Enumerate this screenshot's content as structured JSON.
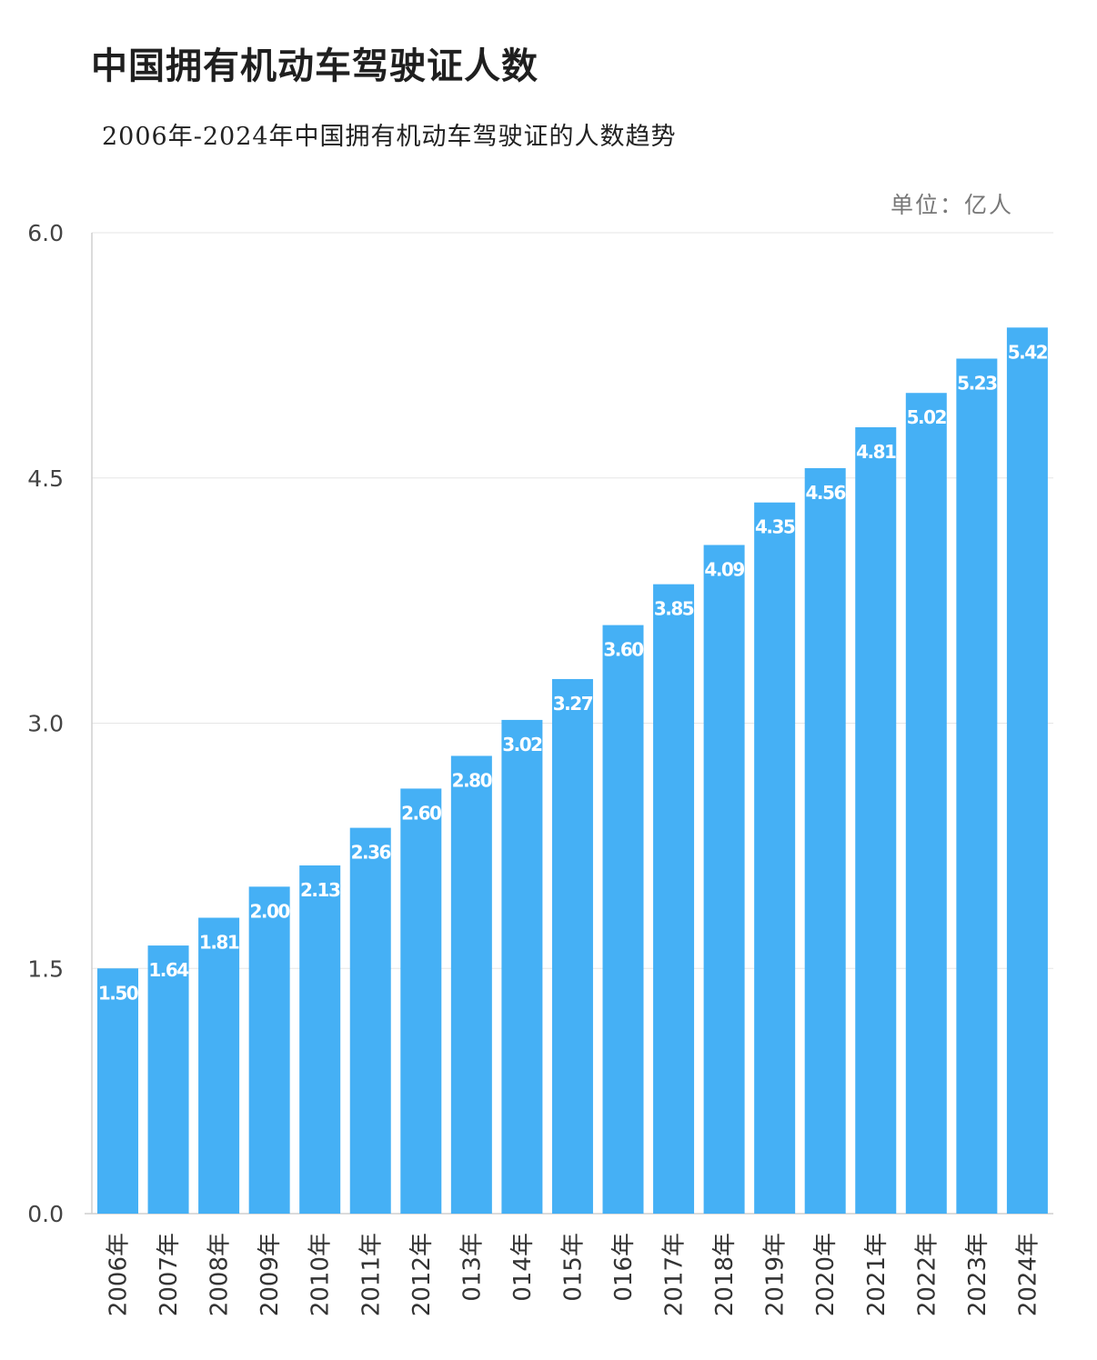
{
  "header": {
    "title": "中国拥有机动车驾驶证人数",
    "subtitle": "2006年-2024年中国拥有机动车驾驶证的人数趋势",
    "unit": "单位：亿人"
  },
  "colors": {
    "bar": "#45b0f5",
    "grid": "#e6e6e6",
    "axis": "#cfcfcf"
  },
  "chart_data": {
    "type": "bar",
    "title": "中国拥有机动车驾驶证人数",
    "subtitle": "2006年-2024年中国拥有机动车驾驶证的人数趋势",
    "unit": "单位：亿人",
    "categories": [
      "2006年",
      "2007年",
      "2008年",
      "2009年",
      "2010年",
      "2011年",
      "2012年",
      "013年",
      "014年",
      "015年",
      "016年",
      "2017年",
      "2018年",
      "2019年",
      "2020年",
      "2021年",
      "2022年",
      "2023年",
      "2024年"
    ],
    "values": [
      1.5,
      1.64,
      1.81,
      2.0,
      2.13,
      2.36,
      2.6,
      2.8,
      3.02,
      3.27,
      3.6,
      3.85,
      4.09,
      4.35,
      4.56,
      4.81,
      5.02,
      5.23,
      5.42
    ],
    "value_labels": [
      "1.50",
      "1.64",
      "1.81",
      "2.00",
      "2.13",
      "2.36",
      "2.60",
      "2.80",
      "3.02",
      "3.27",
      "3.60",
      "3.85",
      "4.09",
      "4.35",
      "4.56",
      "4.81",
      "5.02",
      "5.23",
      "5.42"
    ],
    "yticks": [
      "0.0",
      "1.5",
      "3.0",
      "4.5",
      "6.0"
    ],
    "ytick_values": [
      0,
      1.5,
      3.0,
      4.5,
      6.0
    ],
    "ylim": [
      0,
      6.0
    ],
    "grid": true,
    "legend": "none"
  }
}
